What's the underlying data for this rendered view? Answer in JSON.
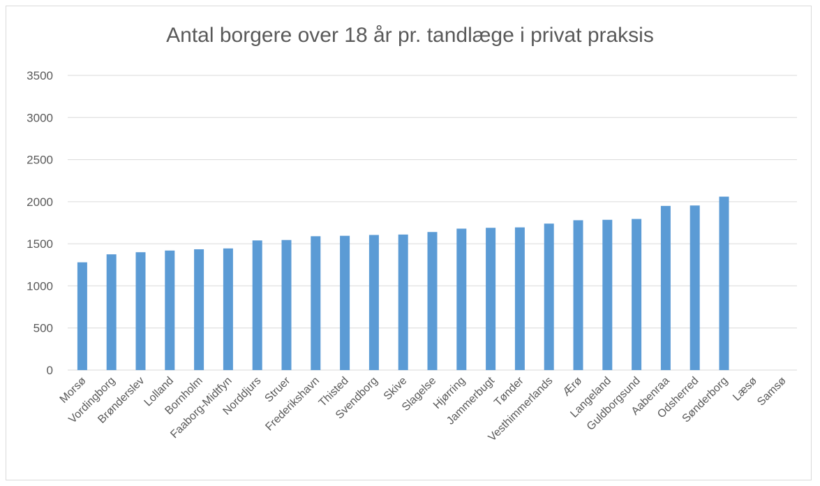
{
  "chart_data": {
    "type": "bar",
    "title": "Antal borgere over 18 år pr. tandlæge i privat praksis",
    "xlabel": "",
    "ylabel": "",
    "ylim": [
      0,
      3500
    ],
    "yticks": [
      0,
      500,
      1000,
      1500,
      2000,
      2500,
      3000,
      3500
    ],
    "grid": true,
    "legend": "none",
    "bar_color": "#5b9bd5",
    "categories": [
      "Morsø",
      "Vordingborg",
      "Brønderslev",
      "Lolland",
      "Bornholm",
      "Faaborg-Midtfyn",
      "Norddjurs",
      "Struer",
      "Frederikshavn",
      "Thisted",
      "Svendborg",
      "Skive",
      "Slagelse",
      "Hjørring",
      "Jammerbugt",
      "Tønder",
      "Vesthimmerlands",
      "Ærø",
      "Langeland",
      "Guldborgsund",
      "Aabenraa",
      "Odsherred",
      "Sønderborg",
      "Læsø",
      "Samsø"
    ],
    "values": [
      1280,
      1375,
      1400,
      1420,
      1435,
      1445,
      1540,
      1545,
      1590,
      1595,
      1605,
      1610,
      1640,
      1680,
      1690,
      1695,
      1740,
      1780,
      1785,
      1795,
      1950,
      1955,
      2060,
      0,
      0
    ]
  }
}
